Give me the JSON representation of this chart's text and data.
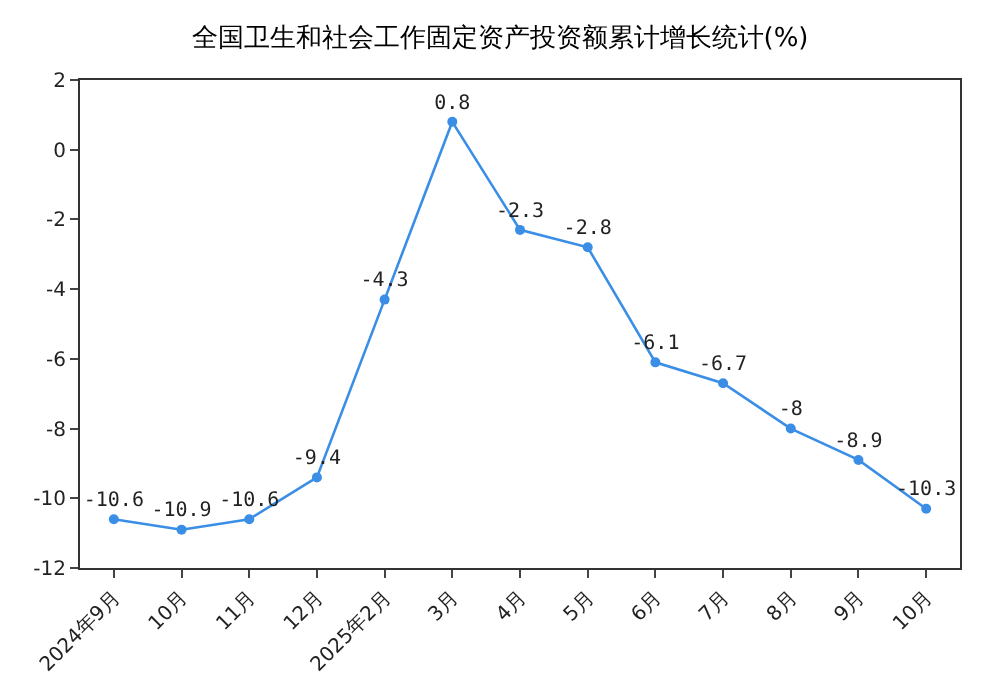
{
  "chart_data": {
    "type": "line",
    "title": "全国卫生和社会工作固定资产投资额累计增长统计(%)",
    "categories": [
      "2024年9月",
      "10月",
      "11月",
      "12月",
      "2025年2月",
      "3月",
      "4月",
      "5月",
      "6月",
      "7月",
      "8月",
      "9月",
      "10月"
    ],
    "series": [
      {
        "color": "#3a8ee6",
        "values": [
          -10.6,
          -10.9,
          -10.6,
          -9.4,
          -4.3,
          0.8,
          -2.3,
          -2.8,
          -6.1,
          -6.7,
          -8,
          -8.9,
          -10.3
        ]
      }
    ],
    "ylim": [
      -12,
      2
    ],
    "yticks": [
      -12,
      -10,
      -8,
      -6,
      -4,
      -2,
      0,
      2
    ],
    "legend": false,
    "marker": "circle",
    "line_style": "solid",
    "data_labels": true
  }
}
